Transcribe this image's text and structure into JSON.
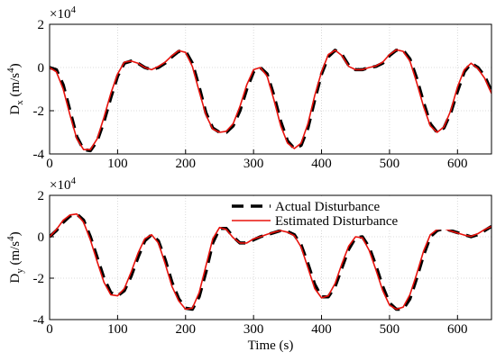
{
  "chart_data": [
    {
      "type": "line",
      "multiplier": [
        "×10",
        "4"
      ],
      "ylabel": [
        "D",
        "x",
        " (m/s",
        "4",
        ")"
      ],
      "x": [
        0,
        10,
        20,
        30,
        40,
        50,
        60,
        70,
        80,
        90,
        100,
        110,
        120,
        130,
        140,
        150,
        160,
        170,
        180,
        190,
        200,
        210,
        220,
        230,
        240,
        250,
        260,
        270,
        280,
        290,
        300,
        310,
        320,
        330,
        340,
        350,
        360,
        370,
        380,
        390,
        400,
        410,
        420,
        430,
        440,
        450,
        460,
        470,
        480,
        490,
        500,
        510,
        520,
        530,
        540,
        550,
        560,
        570,
        580,
        590,
        600,
        610,
        620,
        630,
        640,
        650
      ],
      "series": [
        {
          "color": "#000000",
          "dash": true,
          "values": [
            0,
            -0.1,
            -0.8,
            -2.0,
            -3.2,
            -3.8,
            -3.85,
            -3.4,
            -2.5,
            -1.4,
            -0.4,
            0.2,
            0.3,
            0.2,
            0.0,
            -0.1,
            0.0,
            0.2,
            0.5,
            0.75,
            0.75,
            0.2,
            -0.9,
            -2.1,
            -2.8,
            -3.0,
            -3.0,
            -2.7,
            -2.0,
            -1.0,
            -0.2,
            0.0,
            -0.3,
            -1.3,
            -2.5,
            -3.4,
            -3.75,
            -3.6,
            -2.8,
            -1.5,
            -0.3,
            0.5,
            0.8,
            0.6,
            0.1,
            -0.1,
            -0.1,
            0.0,
            0.05,
            0.2,
            0.55,
            0.8,
            0.8,
            0.4,
            -0.5,
            -1.6,
            -2.6,
            -3.0,
            -2.8,
            -2.1,
            -1.1,
            -0.2,
            0.2,
            0.0,
            -0.4,
            -1.1
          ]
        },
        {
          "color": "#e8120c",
          "dash": false,
          "values": [
            0,
            -0.2,
            -1.0,
            -2.2,
            -3.3,
            -3.8,
            -3.8,
            -3.3,
            -2.3,
            -1.2,
            -0.3,
            0.25,
            0.3,
            0.2,
            0.0,
            -0.1,
            0.05,
            0.25,
            0.55,
            0.78,
            0.7,
            0.05,
            -1.1,
            -2.2,
            -2.85,
            -3.0,
            -2.95,
            -2.6,
            -1.8,
            -0.8,
            -0.1,
            0.0,
            -0.4,
            -1.5,
            -2.7,
            -3.5,
            -3.75,
            -3.5,
            -2.6,
            -1.3,
            -0.2,
            0.6,
            0.8,
            0.55,
            0.05,
            -0.1,
            -0.1,
            0.0,
            0.07,
            0.25,
            0.6,
            0.82,
            0.75,
            0.3,
            -0.7,
            -1.8,
            -2.7,
            -3.0,
            -2.75,
            -2.0,
            -0.9,
            -0.1,
            0.2,
            -0.05,
            -0.5,
            -1.2
          ]
        }
      ],
      "xlim": [
        0,
        650
      ],
      "xticks": [
        0,
        100,
        200,
        300,
        400,
        500,
        600
      ],
      "ylim": [
        -4,
        2
      ],
      "yticks": [
        -4,
        -2,
        0,
        2
      ],
      "grid": true
    },
    {
      "type": "line",
      "multiplier": [
        "×10",
        "4"
      ],
      "ylabel": [
        "D",
        "y",
        " (m/s",
        "4",
        ")"
      ],
      "xlabel": "Time (s)",
      "x": [
        0,
        10,
        20,
        30,
        40,
        50,
        60,
        70,
        80,
        90,
        100,
        110,
        120,
        130,
        140,
        150,
        160,
        170,
        180,
        190,
        200,
        210,
        220,
        230,
        240,
        250,
        260,
        270,
        280,
        290,
        300,
        310,
        320,
        330,
        340,
        350,
        360,
        370,
        380,
        390,
        400,
        410,
        420,
        430,
        440,
        450,
        460,
        470,
        480,
        490,
        500,
        510,
        520,
        530,
        540,
        550,
        560,
        570,
        580,
        590,
        600,
        610,
        620,
        630,
        640,
        650
      ],
      "series": [
        {
          "name": "Actual Disturbance",
          "color": "#000000",
          "dash": true,
          "values": [
            0,
            0.3,
            0.7,
            1.0,
            1.1,
            0.8,
            0.0,
            -1.0,
            -2.0,
            -2.7,
            -2.85,
            -2.6,
            -1.9,
            -1.0,
            -0.2,
            0.1,
            -0.2,
            -1.1,
            -2.2,
            -3.0,
            -3.45,
            -3.5,
            -2.9,
            -1.7,
            -0.3,
            0.4,
            0.4,
            0.0,
            -0.3,
            -0.3,
            -0.15,
            0.0,
            0.1,
            0.2,
            0.3,
            0.25,
            0.1,
            -0.4,
            -1.3,
            -2.3,
            -2.9,
            -2.9,
            -2.4,
            -1.5,
            -0.6,
            -0.05,
            0.0,
            -0.5,
            -1.4,
            -2.4,
            -3.2,
            -3.5,
            -3.5,
            -3.0,
            -2.0,
            -0.9,
            0.0,
            0.3,
            0.4,
            0.3,
            0.2,
            0.1,
            0.0,
            0.1,
            0.3,
            0.5
          ]
        },
        {
          "name": "Estimated Disturbance",
          "color": "#e8120c",
          "dash": false,
          "values": [
            0,
            0.35,
            0.8,
            1.05,
            1.1,
            0.7,
            -0.15,
            -1.2,
            -2.2,
            -2.8,
            -2.85,
            -2.5,
            -1.7,
            -0.8,
            -0.1,
            0.1,
            -0.3,
            -1.3,
            -2.4,
            -3.1,
            -3.5,
            -3.45,
            -2.7,
            -1.4,
            -0.1,
            0.45,
            0.35,
            -0.05,
            -0.3,
            -0.3,
            -0.1,
            0.0,
            0.12,
            0.22,
            0.3,
            0.22,
            0.05,
            -0.5,
            -1.5,
            -2.5,
            -2.95,
            -2.85,
            -2.25,
            -1.3,
            -0.45,
            0.0,
            -0.05,
            -0.65,
            -1.6,
            -2.6,
            -3.3,
            -3.5,
            -3.4,
            -2.8,
            -1.8,
            -0.7,
            0.1,
            0.35,
            0.4,
            0.28,
            0.18,
            0.08,
            0.02,
            0.15,
            0.35,
            0.5
          ]
        }
      ],
      "xlim": [
        0,
        650
      ],
      "xticks": [
        0,
        100,
        200,
        300,
        400,
        500,
        600
      ],
      "ylim": [
        -4,
        2
      ],
      "yticks": [
        -4,
        -2,
        0,
        2
      ],
      "grid": true,
      "legend": "upper right"
    }
  ]
}
